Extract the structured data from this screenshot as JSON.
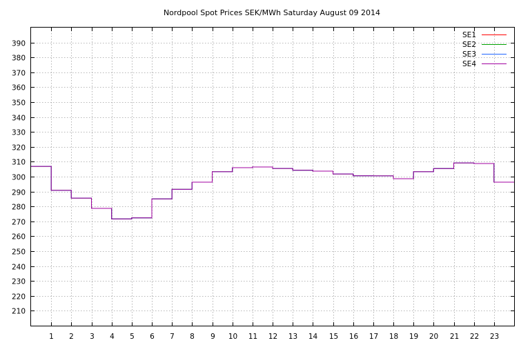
{
  "chart_data": {
    "type": "line",
    "step": true,
    "title": "Nordpool Spot Prices SEK/MWh Saturday August 09 2014",
    "xlabel": "",
    "ylabel": "",
    "xlim": [
      0,
      24
    ],
    "ylim": [
      200,
      400
    ],
    "x_ticks": [
      1,
      2,
      3,
      4,
      5,
      6,
      7,
      8,
      9,
      10,
      11,
      12,
      13,
      14,
      15,
      16,
      17,
      18,
      19,
      20,
      21,
      22,
      23
    ],
    "y_ticks": [
      210,
      220,
      230,
      240,
      250,
      260,
      270,
      280,
      290,
      300,
      310,
      320,
      330,
      340,
      350,
      360,
      370,
      380,
      390
    ],
    "grid": true,
    "legend_position": "top-right",
    "x": [
      0,
      1,
      2,
      3,
      4,
      5,
      6,
      7,
      8,
      9,
      10,
      11,
      12,
      13,
      14,
      15,
      16,
      17,
      18,
      19,
      20,
      21,
      22,
      23
    ],
    "series": [
      {
        "name": "SE1",
        "color": "#ff0000",
        "values": [
          306.9,
          290.8,
          285.6,
          278.7,
          271.6,
          272.3,
          285.1,
          291.5,
          296.3,
          303.3,
          306.0,
          306.5,
          305.5,
          304.3,
          303.7,
          301.8,
          300.6,
          300.5,
          298.6,
          303.3,
          305.4,
          309.2,
          308.8,
          296.3
        ]
      },
      {
        "name": "SE2",
        "color": "#00a000",
        "values": [
          306.9,
          290.8,
          285.6,
          278.7,
          271.6,
          272.3,
          285.1,
          291.5,
          296.3,
          303.3,
          306.0,
          306.5,
          305.5,
          304.3,
          303.7,
          301.8,
          300.6,
          300.5,
          298.6,
          303.3,
          305.4,
          309.2,
          308.8,
          296.3
        ]
      },
      {
        "name": "SE3",
        "color": "#1e64ff",
        "values": [
          306.9,
          290.8,
          285.6,
          278.7,
          271.6,
          272.3,
          285.1,
          291.5,
          296.3,
          303.3,
          306.0,
          306.5,
          305.5,
          304.3,
          303.7,
          301.8,
          300.6,
          300.5,
          298.6,
          303.3,
          305.4,
          309.2,
          308.8,
          296.3
        ]
      },
      {
        "name": "SE4",
        "color": "#a000a0",
        "values": [
          306.9,
          290.8,
          285.6,
          278.7,
          271.6,
          272.3,
          285.1,
          291.5,
          296.3,
          303.3,
          306.0,
          306.5,
          305.5,
          304.3,
          303.7,
          301.8,
          300.6,
          300.5,
          298.6,
          303.3,
          305.4,
          309.2,
          308.8,
          296.3
        ]
      }
    ]
  }
}
